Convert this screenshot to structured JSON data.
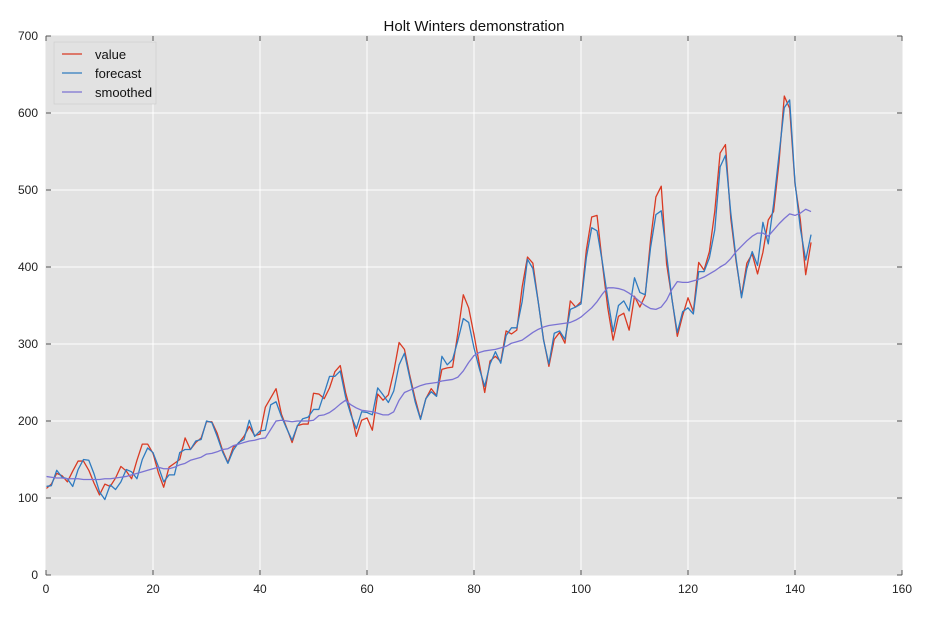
{
  "chart_data": {
    "type": "line",
    "title": "Holt Winters demonstration",
    "xlim": [
      0,
      160
    ],
    "ylim": [
      0,
      700
    ],
    "xticks": [
      0,
      20,
      40,
      60,
      80,
      100,
      120,
      140,
      160
    ],
    "yticks": [
      0,
      100,
      200,
      300,
      400,
      500,
      600,
      700
    ],
    "grid": true,
    "legend_position": "top-left",
    "background_color": "#e2e2e2",
    "grid_color": "#ffffff",
    "series": [
      {
        "name": "value",
        "color": "#d93a23",
        "values": [
          112,
          118,
          132,
          129,
          121,
          135,
          148,
          148,
          136,
          119,
          104,
          118,
          115,
          126,
          141,
          135,
          125,
          149,
          170,
          170,
          158,
          133,
          114,
          140,
          145,
          150,
          178,
          163,
          172,
          178,
          199,
          199,
          184,
          162,
          146,
          166,
          171,
          180,
          193,
          181,
          183,
          218,
          230,
          242,
          209,
          191,
          172,
          194,
          196,
          196,
          236,
          235,
          229,
          243,
          264,
          272,
          237,
          211,
          180,
          201,
          204,
          188,
          235,
          227,
          234,
          264,
          302,
          293,
          259,
          229,
          203,
          229,
          242,
          233,
          267,
          269,
          270,
          315,
          364,
          347,
          312,
          274,
          237,
          278,
          284,
          277,
          317,
          313,
          318,
          374,
          413,
          405,
          355,
          306,
          271,
          306,
          315,
          301,
          356,
          348,
          355,
          422,
          465,
          467,
          404,
          347,
          305,
          336,
          340,
          318,
          362,
          348,
          363,
          435,
          491,
          505,
          404,
          359,
          310,
          337,
          360,
          342,
          406,
          396,
          420,
          472,
          548,
          559,
          463,
          407,
          362,
          405,
          417,
          391,
          419,
          461,
          472,
          535,
          622,
          606,
          508,
          461,
          390,
          432
        ]
      },
      {
        "name": "forecast",
        "color": "#2f7bc0",
        "values": [
          115,
          116,
          136,
          127,
          125,
          115,
          137,
          150,
          149,
          131,
          108,
          98,
          117,
          111,
          121,
          137,
          134,
          125,
          150,
          165,
          159,
          141,
          121,
          130,
          130,
          159,
          163,
          163,
          174,
          176,
          200,
          198,
          180,
          160,
          145,
          162,
          172,
          176,
          201,
          180,
          187,
          188,
          221,
          225,
          206,
          190,
          175,
          194,
          203,
          205,
          215,
          215,
          236,
          258,
          258,
          265,
          231,
          208,
          190,
          212,
          211,
          208,
          243,
          234,
          224,
          239,
          273,
          288,
          256,
          225,
          202,
          229,
          238,
          232,
          284,
          273,
          280,
          305,
          333,
          328,
          295,
          268,
          245,
          274,
          290,
          275,
          311,
          321,
          321,
          355,
          410,
          398,
          355,
          305,
          274,
          314,
          317,
          306,
          345,
          348,
          352,
          412,
          451,
          447,
          406,
          359,
          316,
          350,
          356,
          343,
          386,
          367,
          364,
          425,
          468,
          473,
          416,
          358,
          315,
          342,
          347,
          339,
          394,
          394,
          412,
          448,
          530,
          545,
          470,
          410,
          360,
          398,
          420,
          402,
          458,
          430,
          482,
          545,
          607,
          617,
          510,
          450,
          409,
          442
        ]
      },
      {
        "name": "smoothed",
        "color": "#7b73d3",
        "values": [
          128,
          127,
          126,
          126,
          125,
          125,
          125,
          124,
          124,
          124,
          124,
          125,
          125,
          126,
          127,
          128,
          130,
          132,
          134,
          136,
          138,
          140,
          138,
          138,
          140,
          143,
          145,
          149,
          151,
          153,
          157,
          158,
          160,
          163,
          164,
          168,
          170,
          172,
          174,
          175,
          177,
          178,
          189,
          200,
          201,
          200,
          199,
          200,
          200,
          200,
          201,
          207,
          208,
          211,
          216,
          222,
          227,
          221,
          217,
          214,
          213,
          212,
          210,
          208,
          208,
          212,
          227,
          237,
          240,
          243,
          246,
          248,
          249,
          250,
          252,
          253,
          254,
          257,
          265,
          276,
          285,
          289,
          291,
          292,
          293,
          295,
          297,
          301,
          303,
          305,
          310,
          315,
          319,
          322,
          324,
          325,
          326,
          327,
          328,
          331,
          335,
          341,
          347,
          355,
          365,
          373,
          373,
          372,
          370,
          366,
          361,
          355,
          350,
          346,
          345,
          348,
          357,
          371,
          381,
          380,
          380,
          382,
          384,
          387,
          391,
          395,
          400,
          404,
          411,
          420,
          427,
          434,
          440,
          444,
          444,
          440,
          448,
          456,
          463,
          469,
          467,
          470,
          475,
          472
        ]
      }
    ]
  }
}
